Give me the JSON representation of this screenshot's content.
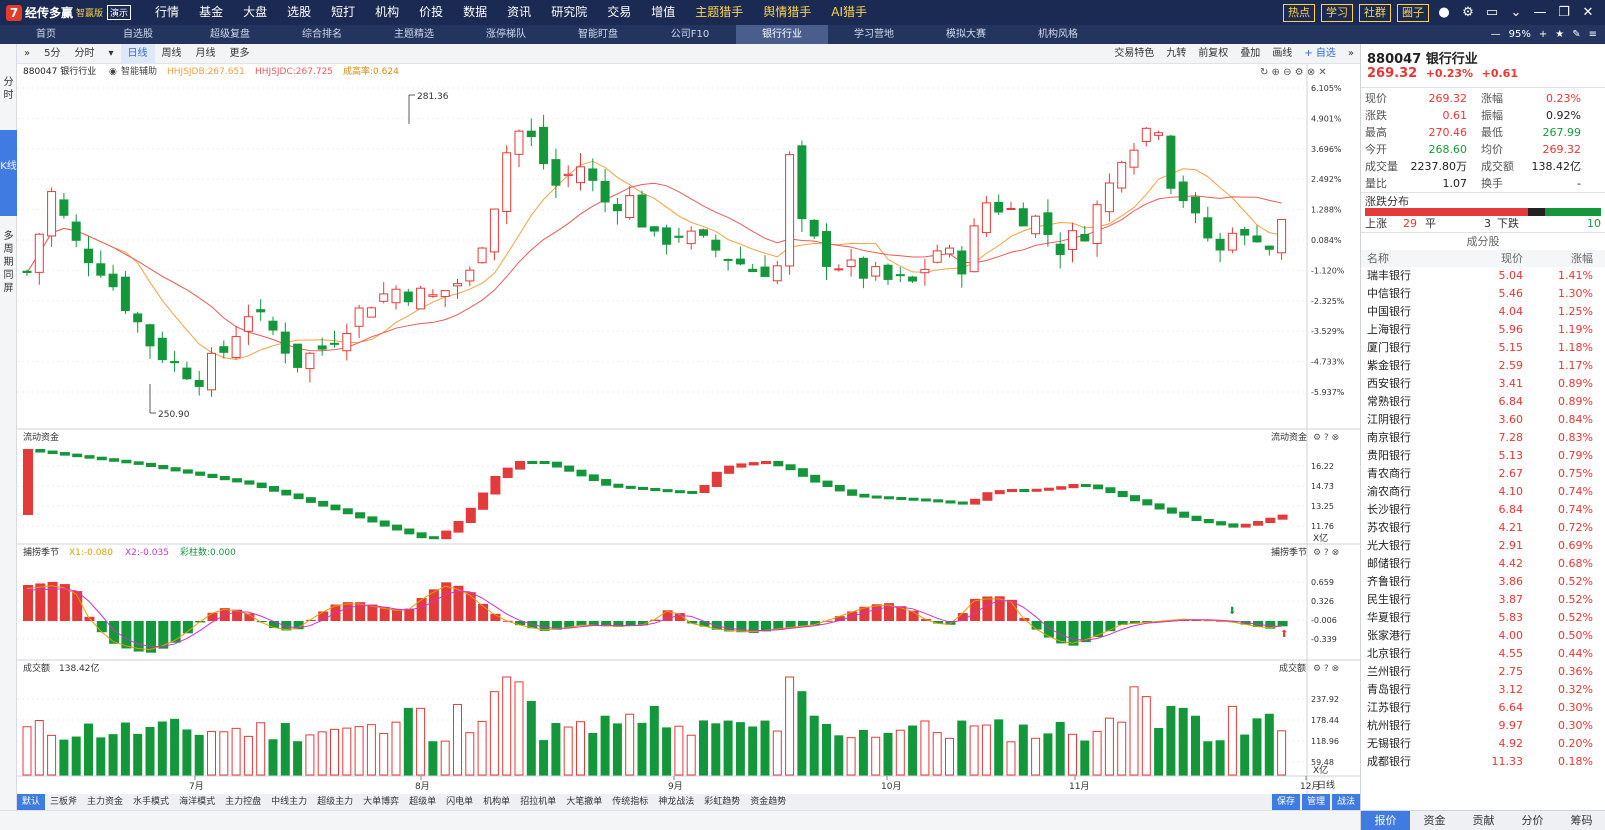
{
  "colors": {
    "up": "#e33b3b",
    "down": "#14963a",
    "ma1": "#f5a042",
    "ma2": "#ea5a5a",
    "accent": "#3f7be0",
    "topbar": "#1b2a52"
  },
  "app": {
    "logo_mark": "7",
    "name": "经传多赢",
    "edition": "智赢版",
    "demo": "演示"
  },
  "menu": [
    "行情",
    "基金",
    "大盘",
    "选股",
    "短打",
    "机构",
    "价投",
    "数据",
    "资讯",
    "研究院",
    "交易",
    "增值",
    "主题猎手",
    "舆情猎手",
    "AI猎手"
  ],
  "top_buttons": [
    "热点",
    "学习",
    "社群",
    "圈子"
  ],
  "tabs": [
    "首页",
    "自选股",
    "超级复盘",
    "综合排名",
    "主题精选",
    "涨停梯队",
    "智能盯盘",
    "公司F10",
    "银行行业",
    "学习营地",
    "模拟大赛",
    "机构风格"
  ],
  "zoom": "95%",
  "left_tabs": [
    "分时",
    "K线",
    "多周期同屏"
  ],
  "periods": [
    "5分",
    "分时",
    "日线",
    "周线",
    "月线",
    "更多"
  ],
  "chart_tools": [
    "交易特色",
    "九转",
    "前复权",
    "叠加",
    "画线",
    "自选"
  ],
  "main_chart": {
    "code_name": "880047 银行行业",
    "assist": "智能辅助",
    "ma1_label": "HHJSJDB:267.651",
    "ma2_label": "HHJSJDC:267.725",
    "extra_label": "成高率:0.624",
    "yticks": [
      "6.105%",
      "4.901%",
      "3.696%",
      "2.492%",
      "1.288%",
      "0.084%",
      "-1.120%",
      "-2.325%",
      "-3.529%",
      "-4.733%",
      "-5.937%"
    ],
    "high_label": "281.36",
    "low_label": "250.90"
  },
  "flow_chart": {
    "title": "流动资金",
    "yticks": [
      "16.22",
      "14.73",
      "13.25",
      "11.76"
    ],
    "unit": "X亿"
  },
  "season_chart": {
    "title": "捕捞季节",
    "x1": "X1:-0.080",
    "x2": "X2:-0.035",
    "bar_count": "彩柱数:0.000",
    "yticks": [
      "0.659",
      "0.326",
      "-0.006",
      "-0.339"
    ]
  },
  "volume_chart": {
    "title": "成交额",
    "value": "138.42亿",
    "yticks": [
      "237.92",
      "178.44",
      "118.96",
      "59.48"
    ],
    "unit": "X亿"
  },
  "xaxis": [
    "7月",
    "8月",
    "9月",
    "10月",
    "11月",
    "12月"
  ],
  "xaxis_right": "日线",
  "bottom_tabs": [
    "默认",
    "三板斧",
    "主力资金",
    "水手模式",
    "海洋模式",
    "主力控盘",
    "中线主力",
    "超级主力",
    "大单博弈",
    "超级单",
    "闪电单",
    "机构单",
    "招拉机单",
    "大笔撤单",
    "传统指标",
    "神龙战法",
    "彩虹趋势",
    "资金趋势"
  ],
  "bottom_right": [
    "保存",
    "管理",
    "战法"
  ],
  "quote": {
    "title": "880047 银行行业",
    "price": "269.32",
    "pct": "+0.23%",
    "chg": "+0.61",
    "rows": [
      {
        "l1": "现价",
        "v1": "269.32",
        "c1": "red",
        "l2": "涨幅",
        "v2": "0.23%",
        "c2": "red"
      },
      {
        "l1": "涨跌",
        "v1": "0.61",
        "c1": "red",
        "l2": "振幅",
        "v2": "0.92%",
        "c2": "blk"
      },
      {
        "l1": "最高",
        "v1": "270.46",
        "c1": "red",
        "l2": "最低",
        "v2": "267.99",
        "c2": "green"
      },
      {
        "l1": "今开",
        "v1": "268.60",
        "c1": "green",
        "l2": "均价",
        "v2": "269.32",
        "c2": "red"
      },
      {
        "l1": "成交量",
        "v1": "2237.80万",
        "c1": "blk",
        "l2": "成交额",
        "v2": "138.42亿",
        "c2": "blk"
      },
      {
        "l1": "量比",
        "v1": "1.07",
        "c1": "blk",
        "l2": "换手",
        "v2": "-",
        "c2": "blk"
      }
    ],
    "dist_title": "涨跌分布",
    "up_label": "上涨",
    "up": "29",
    "flat_label": "平",
    "flat": "3",
    "down_label": "下跌",
    "down": "10"
  },
  "constituents": {
    "title": "成分股",
    "headers": [
      "名称",
      "现价",
      "涨幅"
    ],
    "rows": [
      [
        "瑞丰银行",
        "5.04",
        "1.41%"
      ],
      [
        "中信银行",
        "5.46",
        "1.30%"
      ],
      [
        "中国银行",
        "4.04",
        "1.25%"
      ],
      [
        "上海银行",
        "5.96",
        "1.19%"
      ],
      [
        "厦门银行",
        "5.15",
        "1.18%"
      ],
      [
        "紫金银行",
        "2.59",
        "1.17%"
      ],
      [
        "西安银行",
        "3.41",
        "0.89%"
      ],
      [
        "常熟银行",
        "6.84",
        "0.89%"
      ],
      [
        "江阴银行",
        "3.60",
        "0.84%"
      ],
      [
        "南京银行",
        "7.28",
        "0.83%"
      ],
      [
        "贵阳银行",
        "5.13",
        "0.79%"
      ],
      [
        "青农商行",
        "2.67",
        "0.75%"
      ],
      [
        "渝农商行",
        "4.10",
        "0.74%"
      ],
      [
        "长沙银行",
        "6.84",
        "0.74%"
      ],
      [
        "苏农银行",
        "4.21",
        "0.72%"
      ],
      [
        "光大银行",
        "2.91",
        "0.69%"
      ],
      [
        "邮储银行",
        "4.42",
        "0.68%"
      ],
      [
        "齐鲁银行",
        "3.86",
        "0.52%"
      ],
      [
        "民生银行",
        "3.87",
        "0.52%"
      ],
      [
        "华夏银行",
        "5.83",
        "0.52%"
      ],
      [
        "张家港行",
        "4.00",
        "0.50%"
      ],
      [
        "北京银行",
        "4.55",
        "0.44%"
      ],
      [
        "兰州银行",
        "2.75",
        "0.36%"
      ],
      [
        "青岛银行",
        "3.12",
        "0.32%"
      ],
      [
        "江苏银行",
        "6.64",
        "0.30%"
      ],
      [
        "杭州银行",
        "9.97",
        "0.30%"
      ],
      [
        "无锡银行",
        "4.92",
        "0.20%"
      ],
      [
        "成都银行",
        "11.33",
        "0.18%"
      ]
    ]
  },
  "right_tabs": [
    "报价",
    "资金",
    "贡献",
    "分价",
    "筹码"
  ]
}
